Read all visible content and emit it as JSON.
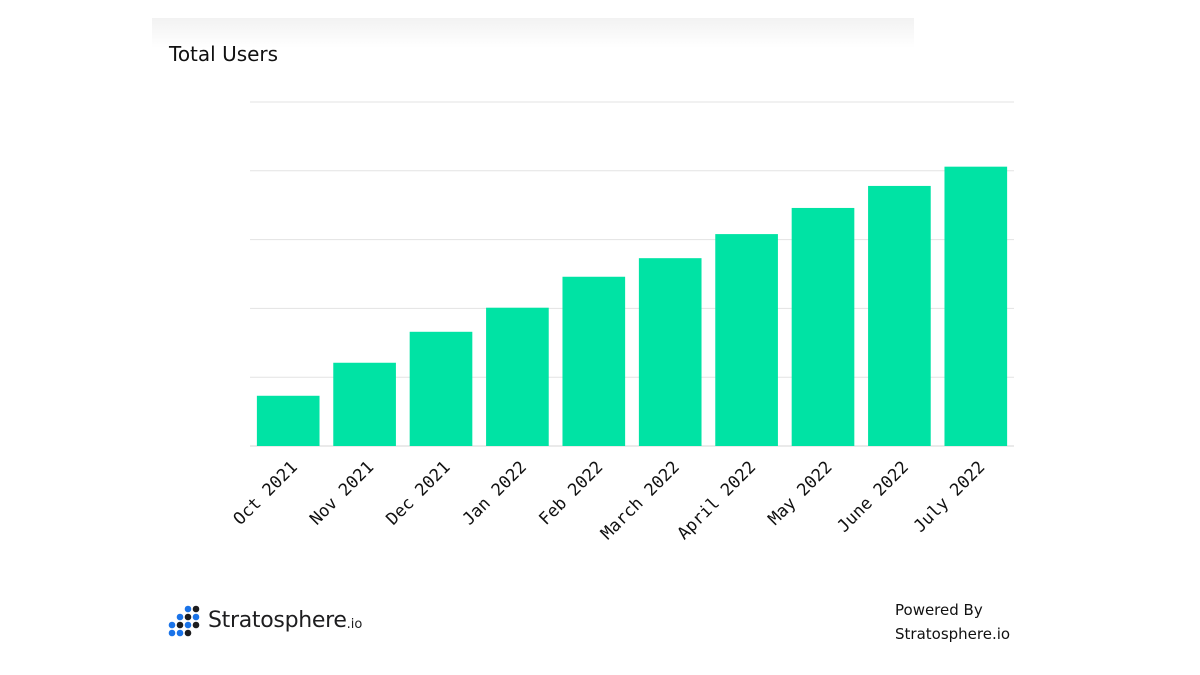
{
  "chart_data": {
    "type": "bar",
    "title": "Total Users",
    "categories": [
      "Oct 2021",
      "Nov 2021",
      "Dec 2021",
      "Jan 2022",
      "Feb 2022",
      "March 2022",
      "April 2022",
      "May 2022",
      "June 2022",
      "July 2022"
    ],
    "values": [
      0.73,
      1.21,
      1.66,
      2.01,
      2.46,
      2.73,
      3.08,
      3.46,
      3.78,
      4.06
    ],
    "ylim": [
      0,
      5
    ],
    "y_ticks_labeled": false,
    "grid": true,
    "bar_color": "#00e3a4"
  },
  "footer": {
    "brand_name": "Stratosphere",
    "brand_suffix": ".io",
    "powered_line1": "Powered By",
    "powered_line2": "Stratosphere.io"
  },
  "colors": {
    "logo_blue": "#1a73e8",
    "logo_dark": "#1d1d1f",
    "gridline": "#e3e3e3"
  }
}
